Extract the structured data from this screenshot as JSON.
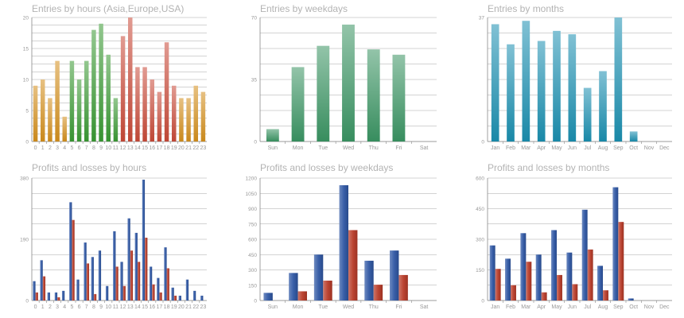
{
  "colors": {
    "grid": "#8a8a8a",
    "axis_text": "#999999",
    "orange": "#d48f1c",
    "green": "#3a9a34",
    "red": "#c84a38",
    "weekday_green": "#3a9463",
    "months_cyan": "#1a8fb0",
    "profit_blue": "#2f57a3",
    "loss_red": "#b83b28"
  },
  "chart_data": [
    {
      "id": "entries-hours",
      "type": "bar",
      "title": "Entries by hours (Asia,Europe,USA)",
      "categories": [
        "0",
        "1",
        "2",
        "3",
        "4",
        "5",
        "6",
        "7",
        "8",
        "9",
        "10",
        "11",
        "12",
        "13",
        "14",
        "15",
        "16",
        "17",
        "18",
        "19",
        "20",
        "21",
        "22",
        "23"
      ],
      "values": [
        9,
        10,
        7,
        13,
        4,
        13,
        10,
        13,
        18,
        19,
        14,
        7,
        17,
        20,
        12,
        12,
        10,
        8,
        16,
        9,
        7,
        7,
        9,
        8
      ],
      "bar_colors": [
        "orange",
        "orange",
        "orange",
        "orange",
        "orange",
        "green",
        "green",
        "green",
        "green",
        "green",
        "green",
        "green",
        "red",
        "red",
        "red",
        "red",
        "red",
        "red",
        "red",
        "red",
        "orange",
        "orange",
        "orange",
        "orange"
      ],
      "ylim": [
        0,
        20
      ],
      "yticks": [
        0,
        5,
        10,
        15,
        20
      ],
      "grid_lines": 16
    },
    {
      "id": "entries-weekdays",
      "type": "bar",
      "title": "Entries by weekdays",
      "categories": [
        "Sun",
        "Mon",
        "Tue",
        "Wed",
        "Thu",
        "Fri",
        "Sat"
      ],
      "values": [
        7,
        42,
        54,
        66,
        52,
        49,
        0
      ],
      "bar_colors": [
        "weekday_green",
        "weekday_green",
        "weekday_green",
        "weekday_green",
        "weekday_green",
        "weekday_green",
        "weekday_green"
      ],
      "ylim": [
        0,
        70
      ],
      "yticks": [
        0,
        35,
        70
      ],
      "grid_lines": 8
    },
    {
      "id": "entries-months",
      "type": "bar",
      "title": "Entries by months",
      "categories": [
        "Jan",
        "Feb",
        "Mar",
        "Apr",
        "May",
        "Jun",
        "Jul",
        "Aug",
        "Sep",
        "Oct",
        "Nov",
        "Dec"
      ],
      "values": [
        35,
        29,
        36,
        30,
        33,
        32,
        16,
        21,
        37,
        3,
        0,
        0
      ],
      "bar_colors": [
        "months_cyan",
        "months_cyan",
        "months_cyan",
        "months_cyan",
        "months_cyan",
        "months_cyan",
        "months_cyan",
        "months_cyan",
        "months_cyan",
        "months_cyan",
        "months_cyan",
        "months_cyan"
      ],
      "ylim": [
        0,
        37
      ],
      "yticks": [
        0,
        37
      ],
      "grid_lines": 8
    },
    {
      "id": "pl-hours",
      "type": "bar",
      "title": "Profits and losses by hours",
      "categories": [
        "0",
        "1",
        "2",
        "3",
        "4",
        "5",
        "6",
        "7",
        "8",
        "9",
        "10",
        "11",
        "12",
        "13",
        "14",
        "15",
        "16",
        "17",
        "18",
        "19",
        "20",
        "21",
        "22",
        "23"
      ],
      "series": [
        {
          "name": "Profits",
          "color": "profit_blue",
          "values": [
            60,
            125,
            25,
            25,
            30,
            305,
            65,
            180,
            135,
            155,
            45,
            215,
            120,
            255,
            210,
            375,
            105,
            70,
            165,
            40,
            15,
            65,
            30,
            15
          ]
        },
        {
          "name": "Losses",
          "color": "loss_red",
          "values": [
            25,
            75,
            0,
            10,
            0,
            250,
            0,
            115,
            20,
            0,
            0,
            105,
            45,
            155,
            120,
            195,
            50,
            25,
            100,
            15,
            0,
            0,
            0,
            0
          ]
        }
      ],
      "ylim": [
        0,
        380
      ],
      "yticks": [
        0,
        190,
        380
      ],
      "grid_lines": 8
    },
    {
      "id": "pl-weekdays",
      "type": "bar",
      "title": "Profits and losses by weekdays",
      "categories": [
        "Sun",
        "Mon",
        "Tue",
        "Wed",
        "Thu",
        "Fri",
        "Sat"
      ],
      "series": [
        {
          "name": "Profits",
          "color": "profit_blue",
          "values": [
            75,
            270,
            450,
            1130,
            390,
            490,
            0
          ]
        },
        {
          "name": "Losses",
          "color": "loss_red",
          "values": [
            0,
            90,
            195,
            690,
            155,
            250,
            0
          ]
        }
      ],
      "ylim": [
        0,
        1200
      ],
      "yticks": [
        0,
        150,
        300,
        450,
        600,
        750,
        900,
        1050,
        1200
      ],
      "grid_lines": 8
    },
    {
      "id": "pl-months",
      "type": "bar",
      "title": "Profits and losses by months",
      "categories": [
        "Jan",
        "Feb",
        "Mar",
        "Apr",
        "May",
        "Jun",
        "Jul",
        "Aug",
        "Sep",
        "Oct",
        "Nov",
        "Dec"
      ],
      "series": [
        {
          "name": "Profits",
          "color": "profit_blue",
          "values": [
            270,
            205,
            330,
            225,
            345,
            235,
            445,
            170,
            555,
            10,
            0,
            0
          ]
        },
        {
          "name": "Losses",
          "color": "loss_red",
          "values": [
            155,
            75,
            190,
            40,
            125,
            80,
            250,
            50,
            385,
            0,
            0,
            0
          ]
        }
      ],
      "ylim": [
        0,
        600
      ],
      "yticks": [
        0,
        150,
        300,
        450,
        600
      ],
      "grid_lines": 8
    }
  ]
}
